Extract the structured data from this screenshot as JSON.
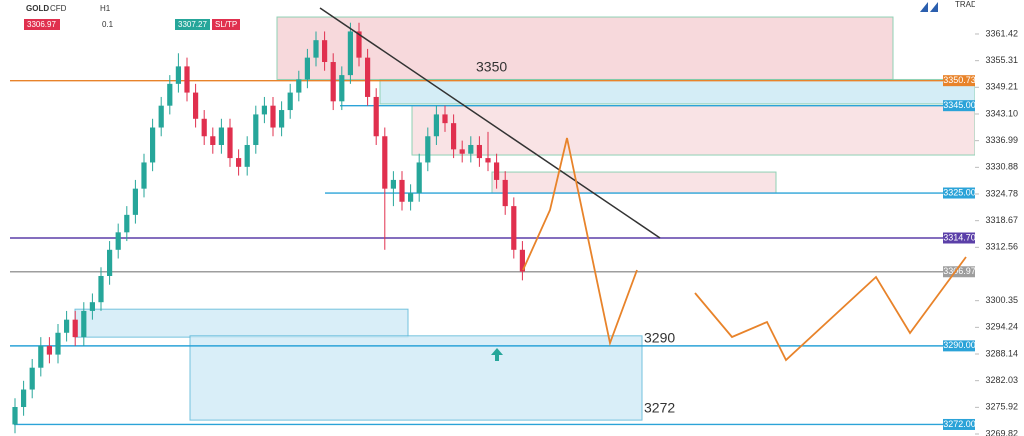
{
  "toolbar": {
    "symbol": "GOLD",
    "kind": "CFD",
    "timeframe": "H1",
    "bid": "3306.97",
    "size": "0.1",
    "ask": "3307.27",
    "sltp": "SL/TP",
    "brand": "TRADE ACADEMY"
  },
  "chart_data": {
    "type": "candlestick",
    "ylim": [
      3269.36,
      3369.2
    ],
    "yticks": [
      3361.42,
      3355.31,
      3349.21,
      {
        "value": 3343.1,
        "label": "3343.10"
      },
      3336.99,
      3330.88,
      3324.78,
      3318.67,
      3312.56,
      3300.35,
      3294.24,
      3288.14,
      3282.03,
      3275.92,
      3269.82
    ],
    "up_color": "#26a69a",
    "down_color": "#e0304e",
    "ohlc": [
      [
        3272,
        3278,
        3270,
        3276
      ],
      [
        3276,
        3282,
        3274,
        3280
      ],
      [
        3280,
        3287,
        3278,
        3285
      ],
      [
        3285,
        3292,
        3283,
        3290
      ],
      [
        3290,
        3292,
        3286,
        3288
      ],
      [
        3288,
        3295,
        3286,
        3293
      ],
      [
        3293,
        3298,
        3291,
        3296
      ],
      [
        3296,
        3298,
        3290,
        3292
      ],
      [
        3292,
        3300,
        3290,
        3298
      ],
      [
        3298,
        3302,
        3296,
        3300
      ],
      [
        3300,
        3308,
        3298,
        3306
      ],
      [
        3306,
        3314,
        3304,
        3312
      ],
      [
        3312,
        3318,
        3310,
        3316
      ],
      [
        3316,
        3322,
        3314,
        3320
      ],
      [
        3320,
        3328,
        3318,
        3326
      ],
      [
        3326,
        3334,
        3324,
        3332
      ],
      [
        3332,
        3342,
        3330,
        3340
      ],
      [
        3340,
        3347,
        3338,
        3345
      ],
      [
        3345,
        3352,
        3343,
        3350
      ],
      [
        3350,
        3357,
        3348,
        3354
      ],
      [
        3354,
        3356,
        3346,
        3348
      ],
      [
        3348,
        3350,
        3340,
        3342
      ],
      [
        3342,
        3344,
        3336,
        3338
      ],
      [
        3338,
        3340,
        3334,
        3336
      ],
      [
        3336,
        3342,
        3334,
        3340
      ],
      [
        3340,
        3342,
        3331,
        3333
      ],
      [
        3333,
        3335,
        3329,
        3331
      ],
      [
        3331,
        3338,
        3329,
        3336
      ],
      [
        3336,
        3345,
        3334,
        3343
      ],
      [
        3343,
        3347,
        3341,
        3345
      ],
      [
        3345,
        3347,
        3338,
        3340
      ],
      [
        3340,
        3346,
        3338,
        3344
      ],
      [
        3344,
        3350,
        3342,
        3348
      ],
      [
        3348,
        3353,
        3346,
        3351
      ],
      [
        3351,
        3358,
        3349,
        3356
      ],
      [
        3356,
        3362,
        3354,
        3360
      ],
      [
        3360,
        3362,
        3353,
        3355
      ],
      [
        3355,
        3357,
        3344,
        3346
      ],
      [
        3346,
        3354,
        3344,
        3352
      ],
      [
        3352,
        3364,
        3350,
        3362
      ],
      [
        3362,
        3364,
        3354,
        3356
      ],
      [
        3356,
        3358,
        3345,
        3347
      ],
      [
        3347,
        3349,
        3336,
        3338
      ],
      [
        3338,
        3340,
        3312,
        3326
      ],
      [
        3326,
        3330,
        3322,
        3328
      ],
      [
        3328,
        3330,
        3321,
        3323
      ],
      [
        3323,
        3327,
        3321,
        3325
      ],
      [
        3325,
        3334,
        3323,
        3332
      ],
      [
        3332,
        3340,
        3330,
        3338
      ],
      [
        3338,
        3345,
        3336,
        3343
      ],
      [
        3343,
        3345,
        3339,
        3341
      ],
      [
        3341,
        3343,
        3333,
        3335
      ],
      [
        3335,
        3337,
        3332,
        3334
      ],
      [
        3334,
        3338,
        3332,
        3336
      ],
      [
        3336,
        3338,
        3331,
        3333
      ],
      [
        3333,
        3339,
        3330,
        3332
      ],
      [
        3332,
        3334,
        3326,
        3328
      ],
      [
        3328,
        3330,
        3320,
        3322
      ],
      [
        3322,
        3324,
        3310,
        3312
      ],
      [
        3312,
        3314,
        3305,
        3307
      ]
    ],
    "levels": [
      {
        "value": 3350.73,
        "label": "3350.73",
        "color": "#e8832a"
      },
      {
        "value": 3345,
        "label": "3345.00",
        "color": "#2ba3d8"
      },
      {
        "value": 3325,
        "label": "3325.00",
        "color": "#2ba3d8"
      },
      {
        "value": 3314.7,
        "label": "3314.70",
        "color": "#5b3fa8"
      },
      {
        "value": 3306.97,
        "label": "3306.97",
        "color": "#9e9e9e"
      },
      {
        "value": 3290,
        "label": "3290.00",
        "color": "#2ba3d8"
      },
      {
        "value": 3272,
        "label": "3272.00",
        "color": "#2ba3d8"
      }
    ],
    "zones": [
      {
        "high": 3365.3,
        "low": 3351.0,
        "color": "#f6d3d6"
      },
      {
        "high": 3351.0,
        "low": 3345.4,
        "color": "#cdeaf5"
      },
      {
        "high": 3345.0,
        "low": 3333.7,
        "color": "#f9dfe1"
      },
      {
        "high": 3329.8,
        "low": 3325.0,
        "color": "#f9dfe1"
      },
      {
        "high": 3298.4,
        "low": 3292.0,
        "color": "#d3ecf7"
      },
      {
        "high": 3292.3,
        "low": 3273.0,
        "color": "#d3ecf7"
      }
    ],
    "annotations": [
      "3350",
      "3290",
      "3272"
    ]
  }
}
